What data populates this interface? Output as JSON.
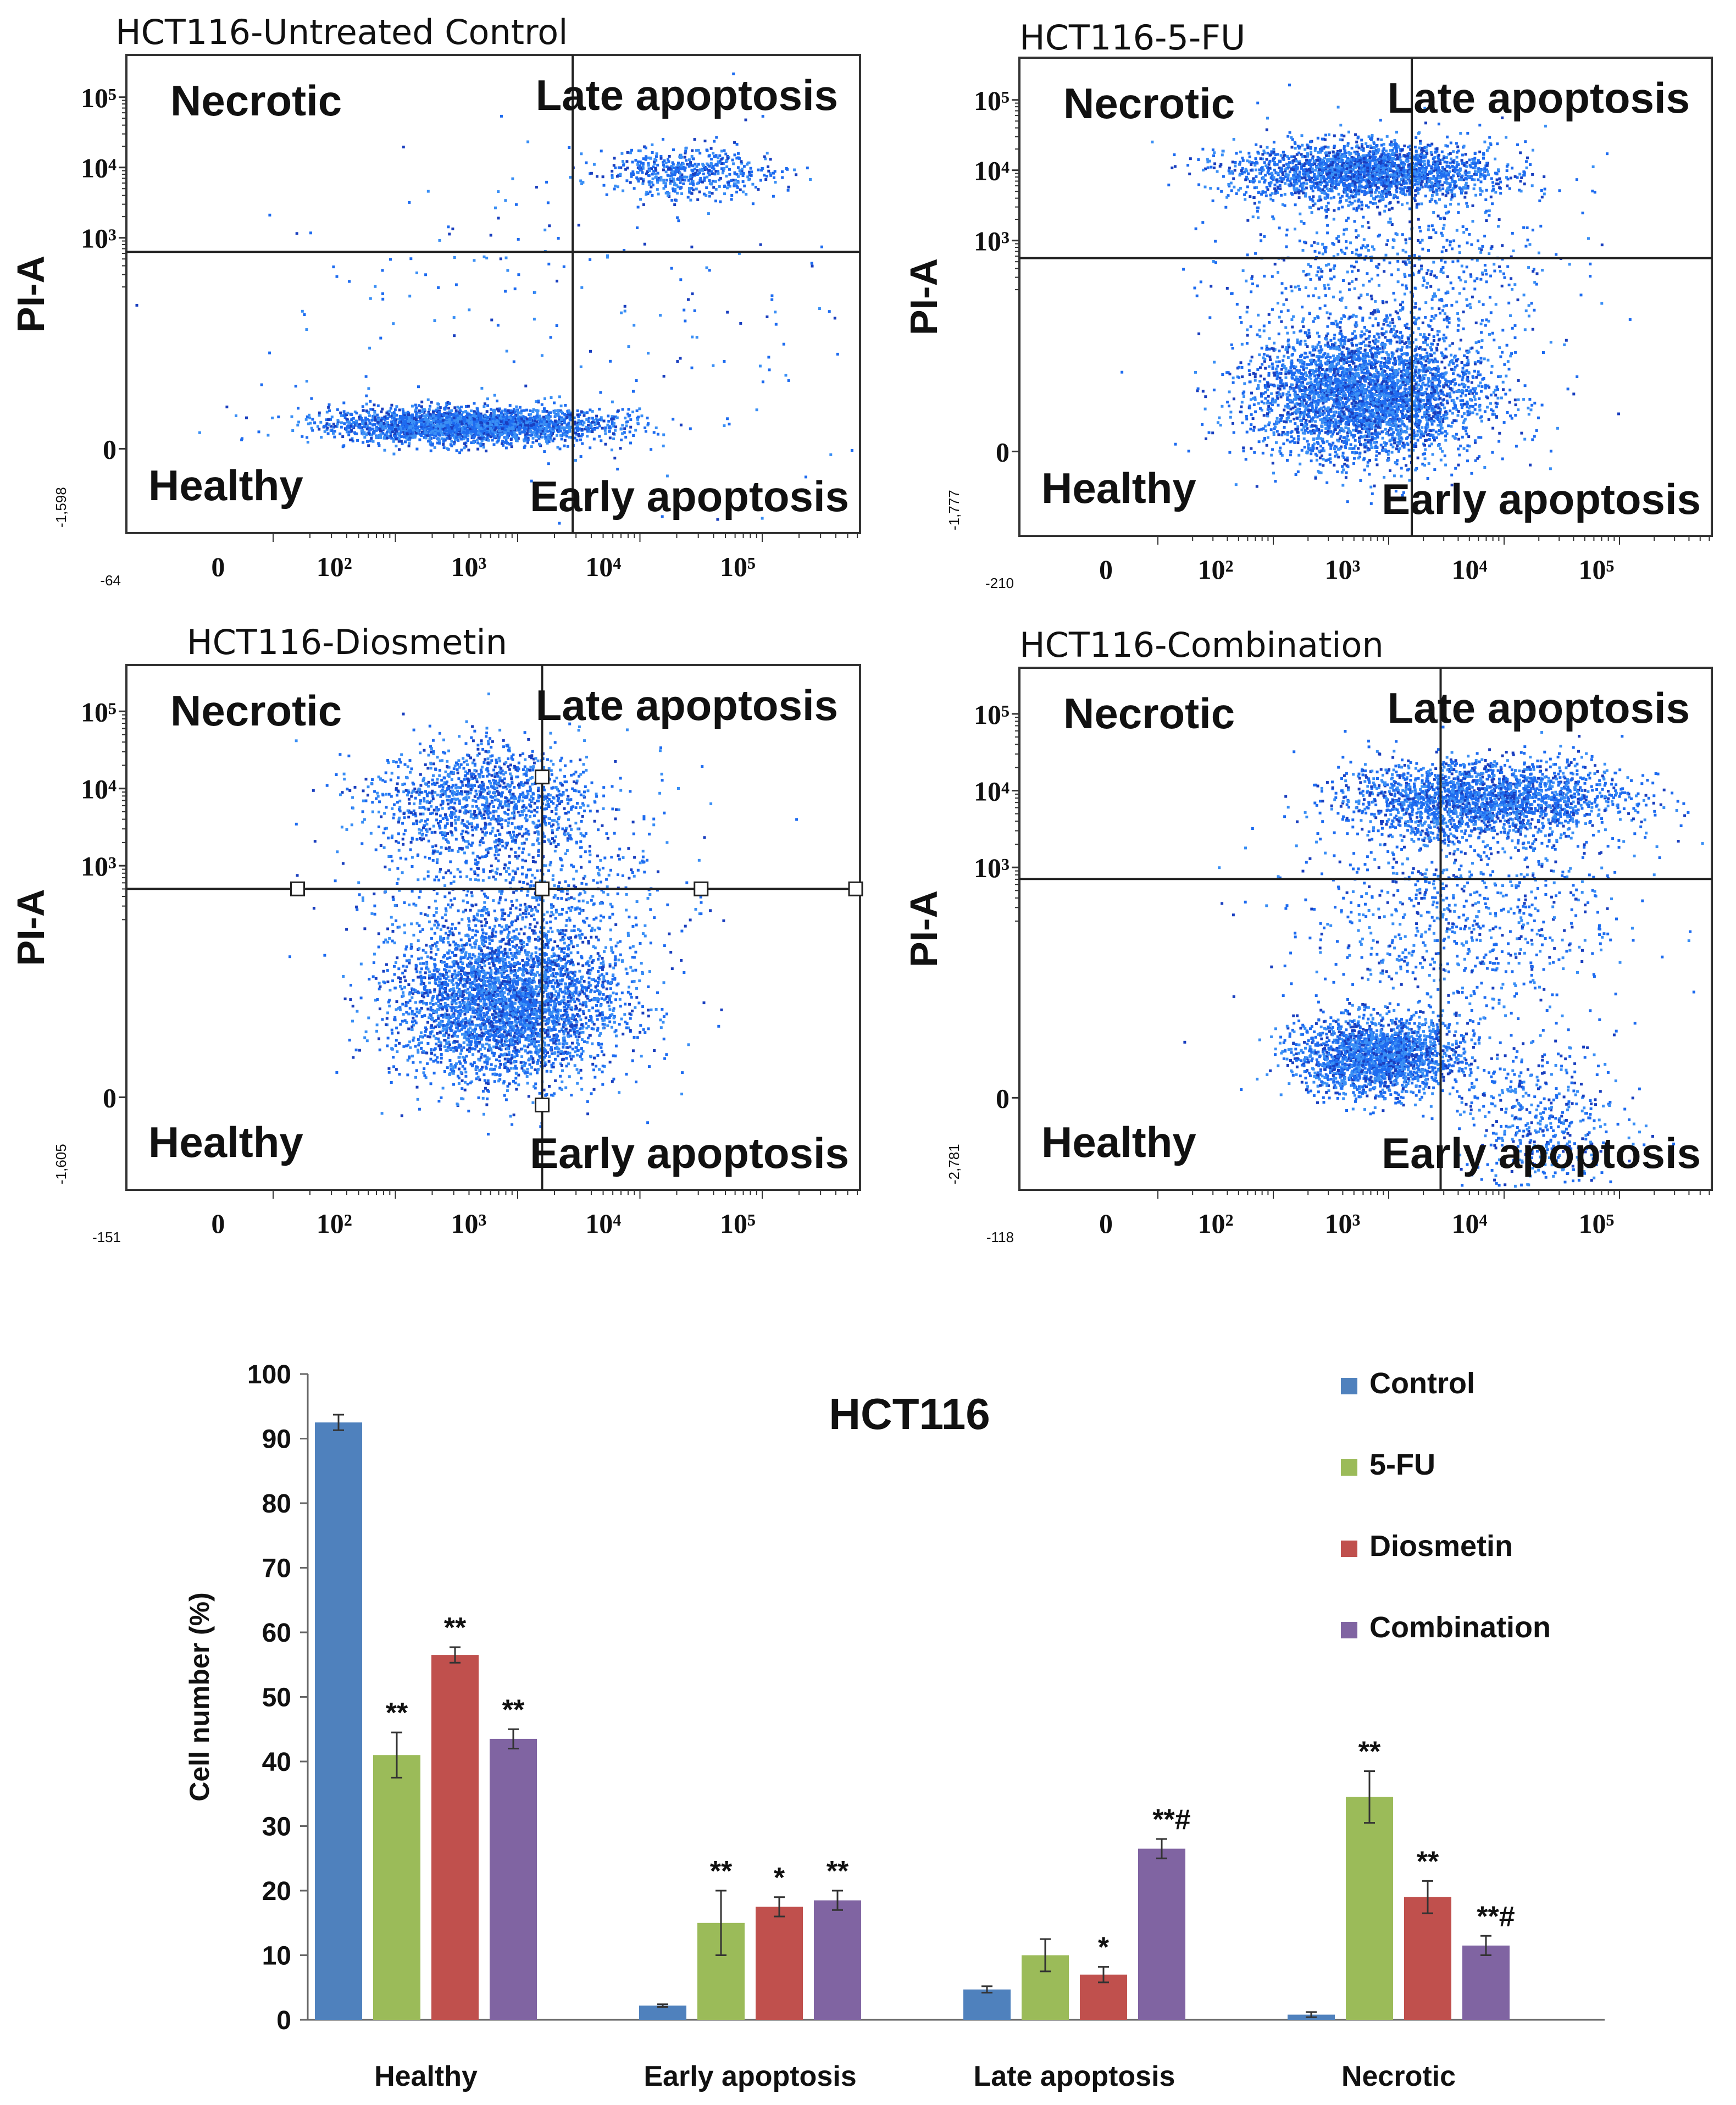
{
  "chart_data": [
    {
      "type": "scatter",
      "title": "HCT116-Untreated Control",
      "ylabel": "PI-A",
      "x_ticks": [
        "0",
        "10²",
        "10³",
        "10⁴",
        "10⁵"
      ],
      "y_ticks": [
        "10⁵",
        "10⁴",
        "10³",
        "0"
      ],
      "x_min_label": "-64",
      "y_min_label": "-1,598",
      "quadrants": {
        "top_left": "Necrotic",
        "top_right": "Late apoptosis",
        "bottom_left": "Healthy",
        "bottom_right": "Early apoptosis"
      },
      "gate": {
        "x_decade": 3.25,
        "y_decade": 2.8
      },
      "populations": [
        {
          "cx": 2.4,
          "cy": 0.35,
          "sx": 0.55,
          "sy": 0.12,
          "n": 2600
        },
        {
          "cx": 4.2,
          "cy": 3.95,
          "sx": 0.35,
          "sy": 0.18,
          "n": 500
        },
        {
          "cx": 3.2,
          "cy": 1.8,
          "sx": 1.2,
          "sy": 1.4,
          "n": 220
        }
      ]
    },
    {
      "type": "scatter",
      "title": "HCT116-5-FU",
      "ylabel": "PI-A",
      "x_ticks": [
        "0",
        "10²",
        "10³",
        "10⁴",
        "10⁵"
      ],
      "y_ticks": [
        "10⁵",
        "10⁴",
        "10³",
        "0"
      ],
      "x_min_label": "-210",
      "y_min_label": "-1,777",
      "quadrants": {
        "top_left": "Necrotic",
        "top_right": "Late apoptosis",
        "bottom_left": "Healthy",
        "bottom_right": "Early apoptosis"
      },
      "gate": {
        "x_decade": 3.0,
        "y_decade": 2.75
      },
      "populations": [
        {
          "cx": 2.6,
          "cy": 0.8,
          "sx": 0.5,
          "sy": 0.45,
          "n": 3600
        },
        {
          "cx": 2.6,
          "cy": 4.0,
          "sx": 0.55,
          "sy": 0.2,
          "n": 2200
        },
        {
          "cx": 2.8,
          "cy": 2.5,
          "sx": 0.7,
          "sy": 0.9,
          "n": 900
        }
      ]
    },
    {
      "type": "scatter",
      "title": "HCT116-Diosmetin",
      "ylabel": "PI-A",
      "x_ticks": [
        "0",
        "10²",
        "10³",
        "10⁴",
        "10⁵"
      ],
      "y_ticks": [
        "10⁵",
        "10⁴",
        "10³",
        "0"
      ],
      "x_min_label": "-151",
      "y_min_label": "-1,605",
      "quadrants": {
        "top_left": "Necrotic",
        "top_right": "Late apoptosis",
        "bottom_left": "Healthy",
        "bottom_right": "Early apoptosis"
      },
      "gate": {
        "x_decade": 3.0,
        "y_decade": 2.7
      },
      "populations": [
        {
          "cx": 2.7,
          "cy": 1.2,
          "sx": 0.45,
          "sy": 0.5,
          "n": 3400
        },
        {
          "cx": 2.5,
          "cy": 3.9,
          "sx": 0.45,
          "sy": 0.35,
          "n": 1100
        },
        {
          "cx": 2.8,
          "cy": 2.6,
          "sx": 0.6,
          "sy": 0.8,
          "n": 1000
        }
      ]
    },
    {
      "type": "scatter",
      "title": "HCT116-Combination",
      "ylabel": "PI-A",
      "x_ticks": [
        "0",
        "10²",
        "10³",
        "10⁴",
        "10⁵"
      ],
      "y_ticks": [
        "10⁵",
        "10⁴",
        "10³",
        "0"
      ],
      "x_min_label": "-118",
      "y_min_label": "-2,781",
      "quadrants": {
        "top_left": "Necrotic",
        "top_right": "Late apoptosis",
        "bottom_left": "Healthy",
        "bottom_right": "Early apoptosis"
      },
      "gate": {
        "x_decade": 3.25,
        "y_decade": 2.85
      },
      "populations": [
        {
          "cx": 2.7,
          "cy": 0.55,
          "sx": 0.35,
          "sy": 0.25,
          "n": 2000
        },
        {
          "cx": 3.6,
          "cy": 3.9,
          "sx": 0.6,
          "sy": 0.25,
          "n": 2200
        },
        {
          "cx": 3.4,
          "cy": 2.4,
          "sx": 0.7,
          "sy": 0.8,
          "n": 900
        },
        {
          "cx": 4.1,
          "cy": -0.3,
          "sx": 0.35,
          "sy": 0.5,
          "n": 500
        }
      ]
    },
    {
      "type": "bar",
      "title": "HCT116",
      "ylabel": "Cell number (%)",
      "xlabel": "",
      "ylim": [
        0,
        100
      ],
      "yticks": [
        0,
        10,
        20,
        30,
        40,
        50,
        60,
        70,
        80,
        90,
        100
      ],
      "categories": [
        "Healthy",
        "Early apoptosis",
        "Late apoptosis",
        "Necrotic"
      ],
      "legend_position": "top-right",
      "series": [
        {
          "name": "Control",
          "color": "#4f81bd",
          "values": [
            92.5,
            2.2,
            4.7,
            0.8
          ],
          "errors": [
            1.2,
            0.2,
            0.5,
            0.4
          ],
          "sig": [
            "",
            "",
            "",
            ""
          ]
        },
        {
          "name": "5-FU",
          "color": "#9bbb59",
          "values": [
            41,
            15,
            10,
            34.5
          ],
          "errors": [
            3.5,
            5.0,
            2.5,
            4.0
          ],
          "sig": [
            "**",
            "**",
            "",
            "**"
          ]
        },
        {
          "name": "Diosmetin",
          "color": "#c0504d",
          "values": [
            56.5,
            17.5,
            7,
            19
          ],
          "errors": [
            1.2,
            1.5,
            1.2,
            2.5
          ],
          "sig": [
            "**",
            "*",
            "*",
            "**"
          ]
        },
        {
          "name": "Combination",
          "color": "#8064a2",
          "values": [
            43.5,
            18.5,
            26.5,
            11.5
          ],
          "errors": [
            1.5,
            1.5,
            1.5,
            1.5
          ],
          "sig": [
            "**",
            "**",
            "**#",
            "**#"
          ]
        }
      ]
    }
  ]
}
